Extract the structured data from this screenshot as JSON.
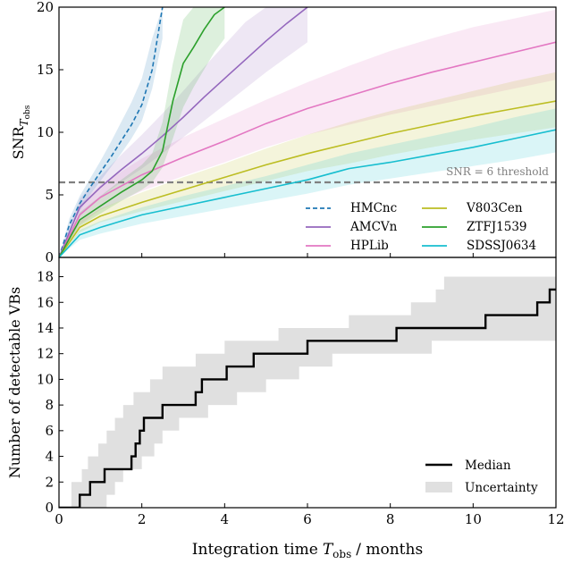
{
  "chart_data": [
    {
      "type": "line",
      "ylabel": "SNR",
      "ylabel_sub": "T",
      "ylabel_subsub": "obs",
      "xlim": [
        0,
        12
      ],
      "ylim": [
        0,
        20
      ],
      "yticks": [
        0,
        5,
        10,
        15,
        20
      ],
      "xticks": [
        0,
        2,
        4,
        6,
        8,
        10,
        12
      ],
      "grid": false,
      "legend_position": "bottom-right",
      "threshold": {
        "value": 6,
        "label": "SNR = 6 threshold",
        "color": "#808080"
      },
      "series": [
        {
          "name": "HMCnc",
          "color": "#1f77b4",
          "dashed": true,
          "x": [
            0,
            0.25,
            0.5,
            0.75,
            1.0,
            1.25,
            1.5,
            1.75,
            2.0,
            2.25,
            2.5
          ],
          "y": [
            0,
            2.6,
            4.3,
            5.6,
            6.8,
            8.0,
            9.3,
            10.6,
            12.2,
            15.0,
            20.0
          ],
          "lo": [
            0,
            2.1,
            3.7,
            5.0,
            6.1,
            7.2,
            8.3,
            9.5,
            10.9,
            13.5,
            17.5
          ],
          "hi": [
            0,
            3.1,
            4.9,
            6.3,
            7.7,
            9.2,
            10.8,
            12.4,
            14.3,
            17.5,
            20.0
          ]
        },
        {
          "name": "AMCVn",
          "color": "#9467bd",
          "dashed": false,
          "x": [
            0,
            0.5,
            1.0,
            1.5,
            2.0,
            2.5,
            3.0,
            3.5,
            4.0,
            4.5,
            5.0,
            5.5,
            6.0
          ],
          "y": [
            0,
            4.0,
            5.6,
            7.0,
            8.3,
            9.7,
            11.2,
            12.8,
            14.3,
            15.8,
            17.3,
            18.7,
            20.0
          ],
          "lo": [
            0,
            3.3,
            4.8,
            6.0,
            7.1,
            8.3,
            9.6,
            10.9,
            12.2,
            13.5,
            14.8,
            16.0,
            17.2
          ],
          "hi": [
            0,
            4.7,
            6.5,
            8.2,
            9.8,
            11.5,
            13.3,
            15.2,
            17.0,
            18.8,
            20.0,
            20.0,
            20.0
          ]
        },
        {
          "name": "HPLib",
          "color": "#e377c2",
          "dashed": false,
          "x": [
            0,
            0.5,
            1,
            2,
            3,
            4,
            5,
            6,
            7,
            8,
            9,
            10,
            11,
            12
          ],
          "y": [
            0,
            3.4,
            4.8,
            6.6,
            8.0,
            9.3,
            10.7,
            11.9,
            12.9,
            13.9,
            14.8,
            15.6,
            16.4,
            17.2
          ],
          "lo": [
            0,
            2.6,
            3.8,
            5.3,
            6.5,
            7.6,
            8.8,
            9.8,
            10.6,
            11.4,
            12.1,
            12.8,
            13.5,
            14.2
          ],
          "hi": [
            0,
            4.2,
            5.8,
            7.9,
            9.6,
            11.1,
            12.6,
            14.0,
            15.3,
            16.5,
            17.5,
            18.4,
            19.1,
            19.8
          ]
        },
        {
          "name": "V803Cen",
          "color": "#bcbd22",
          "dashed": false,
          "x": [
            0,
            0.5,
            1,
            2,
            3,
            4,
            5,
            6,
            7,
            8,
            9,
            10,
            11,
            12
          ],
          "y": [
            0,
            2.4,
            3.3,
            4.4,
            5.4,
            6.4,
            7.4,
            8.3,
            9.1,
            9.9,
            10.6,
            11.3,
            11.9,
            12.5
          ],
          "lo": [
            0,
            2.0,
            2.8,
            3.7,
            4.5,
            5.3,
            6.1,
            6.9,
            7.5,
            8.2,
            8.8,
            9.4,
            9.9,
            10.4
          ],
          "hi": [
            0,
            2.9,
            3.9,
            5.2,
            6.4,
            7.5,
            8.7,
            9.8,
            10.8,
            11.7,
            12.5,
            13.3,
            14.1,
            14.8
          ]
        },
        {
          "name": "ZTFJ1539",
          "color": "#2ca02c",
          "dashed": false,
          "x": [
            0,
            0.5,
            1.0,
            1.5,
            2.0,
            2.25,
            2.5,
            2.75,
            3.0,
            3.25,
            3.5,
            3.75,
            4.0
          ],
          "y": [
            0,
            3.0,
            4.1,
            5.2,
            6.2,
            6.9,
            8.5,
            12.5,
            15.5,
            16.8,
            18.2,
            19.4,
            20.0
          ],
          "lo": [
            0,
            2.5,
            3.5,
            4.5,
            5.4,
            6.0,
            7.2,
            9.5,
            12.0,
            13.6,
            15.0,
            16.4,
            17.5
          ],
          "hi": [
            0,
            3.6,
            4.9,
            6.2,
            7.4,
            8.3,
            10.8,
            15.5,
            19.0,
            20.0,
            20.0,
            20.0,
            20.0
          ]
        },
        {
          "name": "SDSSJ0634",
          "color": "#17becf",
          "dashed": false,
          "x": [
            0,
            0.5,
            1,
            2,
            3,
            4,
            5,
            6,
            7,
            8,
            9,
            10,
            11,
            12
          ],
          "y": [
            0,
            1.8,
            2.4,
            3.4,
            4.1,
            4.8,
            5.5,
            6.2,
            7.1,
            7.6,
            8.2,
            8.8,
            9.5,
            10.2
          ],
          "lo": [
            0,
            1.4,
            1.9,
            2.7,
            3.3,
            3.9,
            4.5,
            5.1,
            5.8,
            6.3,
            6.8,
            7.3,
            7.8,
            8.4
          ],
          "hi": [
            0,
            2.2,
            2.9,
            4.0,
            4.9,
            5.7,
            6.5,
            7.4,
            8.3,
            9.0,
            9.7,
            10.4,
            11.2,
            11.9
          ]
        }
      ]
    },
    {
      "type": "line",
      "xlabel": "Integration time",
      "xlabel_sym": "T",
      "xlabel_sub": "obs",
      "xlabel_tail": "/ months",
      "ylabel": "Number of detectable VBs",
      "xlim": [
        0,
        12
      ],
      "ylim": [
        0,
        19.5
      ],
      "yticks": [
        0,
        2,
        4,
        6,
        8,
        10,
        12,
        14,
        16,
        18
      ],
      "xticks": [
        0,
        2,
        4,
        6,
        8,
        10,
        12
      ],
      "grid": false,
      "legend_position": "bottom-right",
      "series": [
        {
          "name": "Median",
          "color": "#000000",
          "x": [
            0,
            0.5,
            0.75,
            1.1,
            1.75,
            1.85,
            1.95,
            2.05,
            2.5,
            3.3,
            3.45,
            4.05,
            4.7,
            6.0,
            8.15,
            10.3,
            11.55,
            11.85,
            12.0
          ],
          "y": [
            0,
            1,
            2,
            3,
            4,
            5,
            6,
            7,
            8,
            9,
            10,
            11,
            12,
            13,
            14,
            15,
            16,
            17,
            17
          ]
        },
        {
          "name": "Uncertainty",
          "color": "#e0e0e0",
          "lo_steps": [
            [
              0,
              0
            ],
            [
              1.15,
              1
            ],
            [
              1.35,
              2
            ],
            [
              1.55,
              3
            ],
            [
              2.0,
              4
            ],
            [
              2.3,
              5
            ],
            [
              2.5,
              6
            ],
            [
              2.9,
              7
            ],
            [
              3.6,
              8
            ],
            [
              4.3,
              9
            ],
            [
              5.0,
              10
            ],
            [
              5.8,
              11
            ],
            [
              6.6,
              12
            ],
            [
              9.0,
              13
            ],
            [
              12.0,
              13
            ]
          ],
          "hi_steps": [
            [
              0,
              0
            ],
            [
              0.3,
              2
            ],
            [
              0.55,
              3
            ],
            [
              0.7,
              4
            ],
            [
              0.95,
              5
            ],
            [
              1.15,
              6
            ],
            [
              1.35,
              7
            ],
            [
              1.55,
              8
            ],
            [
              1.8,
              9
            ],
            [
              2.2,
              10
            ],
            [
              2.5,
              11
            ],
            [
              3.3,
              12
            ],
            [
              4.0,
              13
            ],
            [
              5.3,
              14
            ],
            [
              7.0,
              15
            ],
            [
              8.5,
              16
            ],
            [
              9.1,
              17
            ],
            [
              9.3,
              18
            ],
            [
              12.0,
              19
            ]
          ]
        }
      ]
    }
  ]
}
